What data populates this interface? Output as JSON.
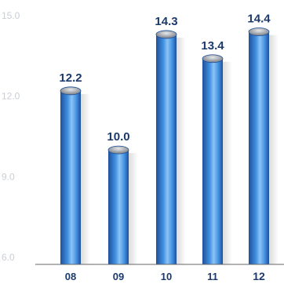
{
  "chart_data": {
    "type": "bar",
    "title": "",
    "xlabel": "",
    "ylabel": "",
    "categories": [
      "08",
      "09",
      "10",
      "11",
      "12"
    ],
    "values": [
      12.2,
      10.0,
      14.3,
      13.4,
      14.4
    ],
    "value_labels": [
      "12.2",
      "10.0",
      "14.3",
      "13.4",
      "14.4"
    ],
    "highlighted_category": "12",
    "ylim": [
      6.0,
      15.0
    ],
    "yticks": [
      6.0,
      9.0,
      12.0,
      15.0
    ],
    "ytick_labels": [
      "6.0",
      "9.0",
      "12.0",
      "15.0"
    ],
    "grid": false,
    "legend": "none",
    "colors": {
      "bar_dark": "#1f4f9a",
      "bar_mid": "#3f8fe0",
      "bar_light": "#8cc4f5",
      "cap_top": "#e6e8ea",
      "cap_bottom": "#6e747c",
      "text_labels": "#1b3a6b",
      "tick_text": "#c9ced6",
      "baseline": "#666666"
    }
  }
}
